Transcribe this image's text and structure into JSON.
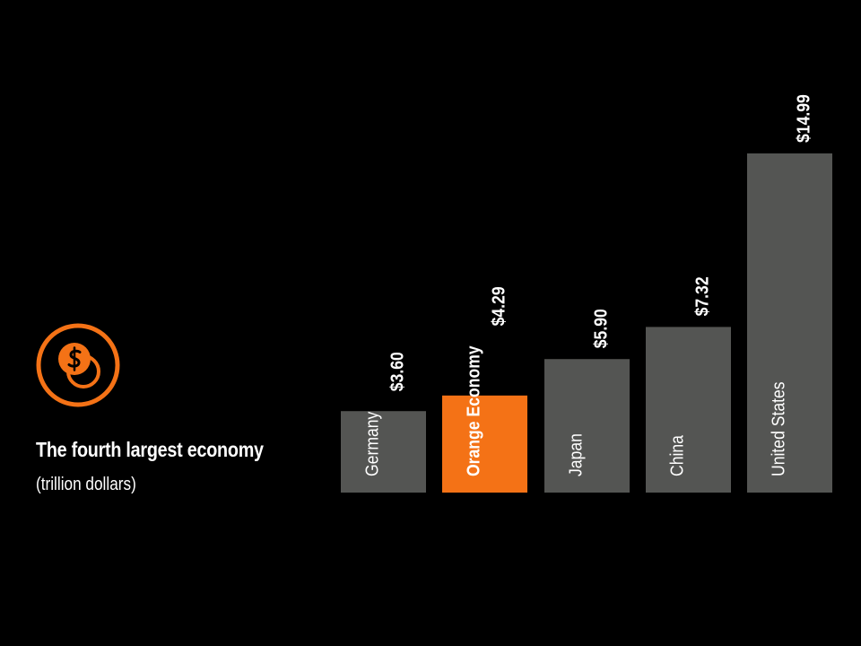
{
  "header": {
    "title": "The fourth largest economy",
    "subtitle": "(trillion dollars)",
    "icon": "dollar-coins-icon"
  },
  "colors": {
    "background": "#000000",
    "bar": "#545553",
    "highlight": "#f47216",
    "text": "#ffffff"
  },
  "chart_data": {
    "type": "bar",
    "orientation": "vertical",
    "title": "The fourth largest economy",
    "ylabel": "(trillion dollars)",
    "grid": false,
    "legend": "none",
    "ylim": [
      0,
      15
    ],
    "categories": [
      "Germany",
      "Orange Economy",
      "Japan",
      "China",
      "United States"
    ],
    "values": [
      3.6,
      4.29,
      5.9,
      7.32,
      14.99
    ],
    "value_labels": [
      "$3.60",
      "$4.29",
      "$5.90",
      "$7.32",
      "$14.99"
    ],
    "highlight": "Orange Economy"
  }
}
